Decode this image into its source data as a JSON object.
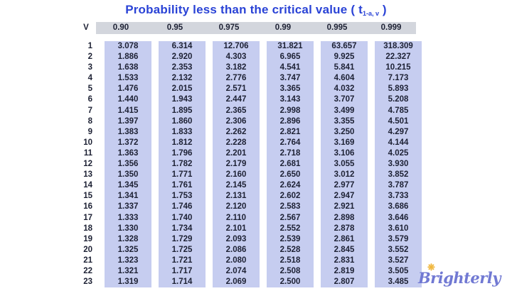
{
  "title": {
    "prefix": "Probability less than the critical value ( t",
    "subscript": "1-a, v",
    "suffix": " )"
  },
  "logo": {
    "text": "Brighterly",
    "sparkle_icon": "❋"
  },
  "colors": {
    "title-blue": "#2a43d6",
    "band-periwinkle": "#c6cdf0",
    "band-gray": "#d3d6dd",
    "text-navy": "#1d2134",
    "logo-purple": "#7179d3",
    "sparkle-gold": "#f0b73e",
    "background": "#ffffff"
  },
  "chart_data": {
    "type": "table",
    "title": "Probability less than the critical value ( t1-a, v )",
    "corner_label": "V",
    "columns": [
      "0.90",
      "0.95",
      "0.975",
      "0.99",
      "0.995",
      "0.999"
    ],
    "rows": [
      {
        "v": "1",
        "values": [
          "3.078",
          "6.314",
          "12.706",
          "31.821",
          "63.657",
          "318.309"
        ]
      },
      {
        "v": "2",
        "values": [
          "1.886",
          "2.920",
          "4.303",
          "6.965",
          "9.925",
          "22.327"
        ]
      },
      {
        "v": "3",
        "values": [
          "1.638",
          "2.353",
          "3.182",
          "4.541",
          "5.841",
          "10.215"
        ]
      },
      {
        "v": "4",
        "values": [
          "1.533",
          "2.132",
          "2.776",
          "3.747",
          "4.604",
          "7.173"
        ]
      },
      {
        "v": "5",
        "values": [
          "1.476",
          "2.015",
          "2.571",
          "3.365",
          "4.032",
          "5.893"
        ]
      },
      {
        "v": "6",
        "values": [
          "1.440",
          "1.943",
          "2.447",
          "3.143",
          "3.707",
          "5.208"
        ]
      },
      {
        "v": "7",
        "values": [
          "1.415",
          "1.895",
          "2.365",
          "2.998",
          "3.499",
          "4.785"
        ]
      },
      {
        "v": "8",
        "values": [
          "1.397",
          "1.860",
          "2.306",
          "2.896",
          "3.355",
          "4.501"
        ]
      },
      {
        "v": "9",
        "values": [
          "1.383",
          "1.833",
          "2.262",
          "2.821",
          "3.250",
          "4.297"
        ]
      },
      {
        "v": "10",
        "values": [
          "1.372",
          "1.812",
          "2.228",
          "2.764",
          "3.169",
          "4.144"
        ]
      },
      {
        "v": "11",
        "values": [
          "1.363",
          "1.796",
          "2.201",
          "2.718",
          "3.106",
          "4.025"
        ]
      },
      {
        "v": "12",
        "values": [
          "1.356",
          "1.782",
          "2.179",
          "2.681",
          "3.055",
          "3.930"
        ]
      },
      {
        "v": "13",
        "values": [
          "1.350",
          "1.771",
          "2.160",
          "2.650",
          "3.012",
          "3.852"
        ]
      },
      {
        "v": "14",
        "values": [
          "1.345",
          "1.761",
          "2.145",
          "2.624",
          "2.977",
          "3.787"
        ]
      },
      {
        "v": "15",
        "values": [
          "1.341",
          "1.753",
          "2.131",
          "2.602",
          "2.947",
          "3.733"
        ]
      },
      {
        "v": "16",
        "values": [
          "1.337",
          "1.746",
          "2.120",
          "2.583",
          "2.921",
          "3.686"
        ]
      },
      {
        "v": "17",
        "values": [
          "1.333",
          "1.740",
          "2.110",
          "2.567",
          "2.898",
          "3.646"
        ]
      },
      {
        "v": "18",
        "values": [
          "1.330",
          "1.734",
          "2.101",
          "2.552",
          "2.878",
          "3.610"
        ]
      },
      {
        "v": "19",
        "values": [
          "1.328",
          "1.729",
          "2.093",
          "2.539",
          "2.861",
          "3.579"
        ]
      },
      {
        "v": "20",
        "values": [
          "1.325",
          "1.725",
          "2.086",
          "2.528",
          "2.845",
          "3.552"
        ]
      },
      {
        "v": "21",
        "values": [
          "1.323",
          "1.721",
          "2.080",
          "2.518",
          "2.831",
          "3.527"
        ]
      },
      {
        "v": "22",
        "values": [
          "1.321",
          "1.717",
          "2.074",
          "2.508",
          "2.819",
          "3.505"
        ]
      },
      {
        "v": "23",
        "values": [
          "1.319",
          "1.714",
          "2.069",
          "2.500",
          "2.807",
          "3.485"
        ]
      }
    ]
  }
}
